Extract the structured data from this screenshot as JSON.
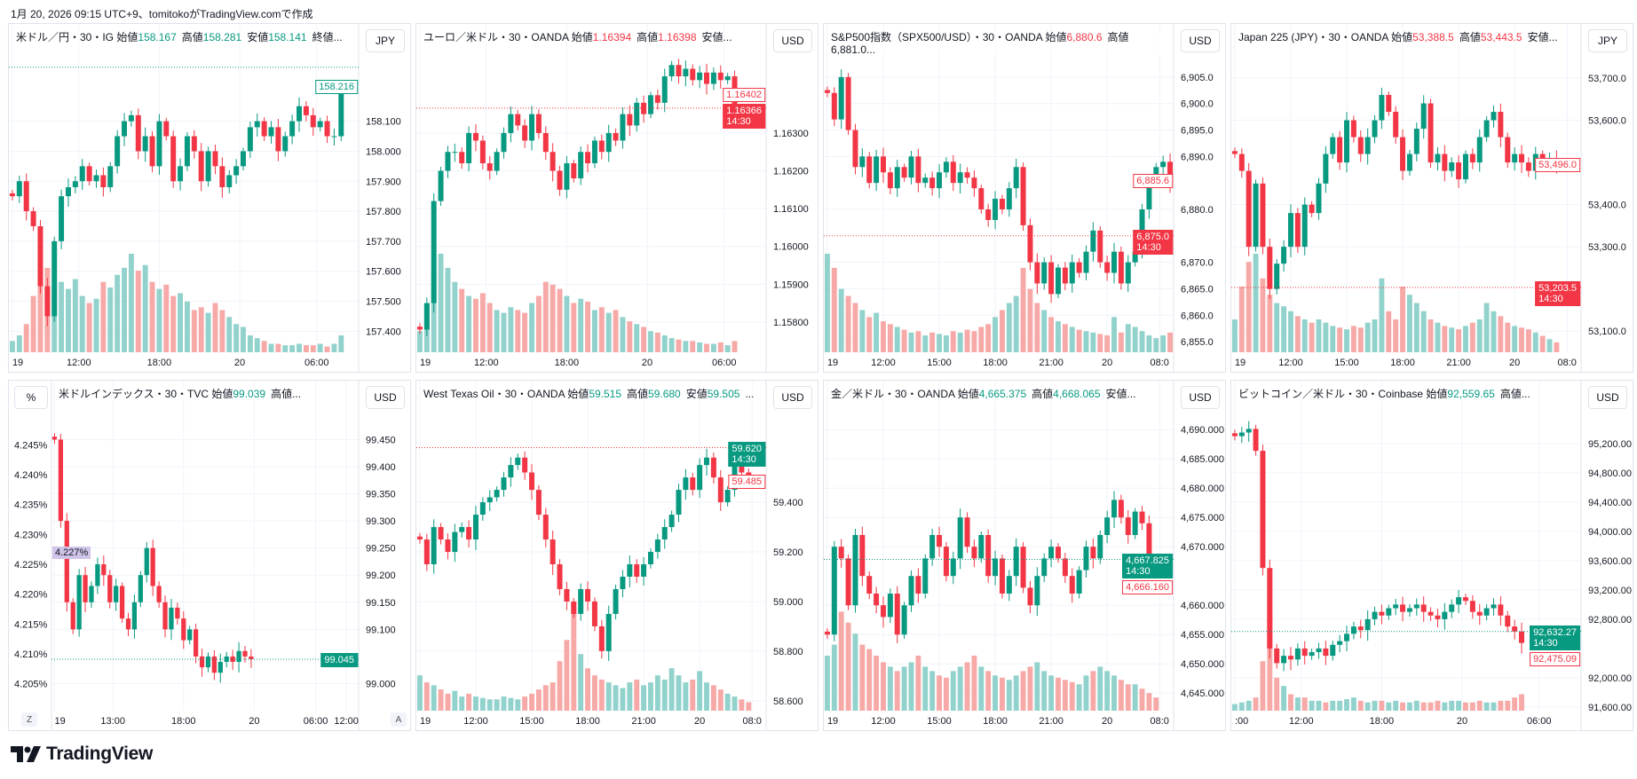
{
  "caption": "1月 20, 2026 09:15 UTC+9、tomitokoがTradingView.comで作成",
  "brand": "TradingView",
  "colors": {
    "up": "#089981",
    "down": "#f23645",
    "upVol": "#92d2cc",
    "downVol": "#f7a9a7",
    "grid": "#f0f3fa",
    "pct": "#d1c4e9"
  },
  "chart_data": [
    {
      "type": "candlestick",
      "legend": {
        "name": "米ドル／円・30・IG",
        "fields": [
          [
            "始値",
            "158.167"
          ],
          [
            "高値",
            "158.281"
          ],
          [
            "安値",
            "158.141"
          ]
        ],
        "tail": "終値..."
      },
      "legend_dir": "up",
      "currency": "JPY",
      "ylim": [
        157.33,
        158.3
      ],
      "yticks": [
        "158.100",
        "158.000",
        "157.900",
        "157.800",
        "157.700",
        "157.600",
        "157.500",
        "157.400"
      ],
      "xticks": [
        "19",
        "12:00",
        "18:00",
        "20",
        "06:00"
      ],
      "ref_line": {
        "value": 158.28,
        "dir": "up"
      },
      "labels": [
        {
          "value": 158.216,
          "text": "158.216",
          "style": "outline-up"
        }
      ],
      "close": [
        157.85,
        157.9,
        157.8,
        157.75,
        157.55,
        157.45,
        157.7,
        157.85,
        157.88,
        157.9,
        157.95,
        157.9,
        157.92,
        157.88,
        157.95,
        158.05,
        158.1,
        158.12,
        158.0,
        158.05,
        157.95,
        158.1,
        158.05,
        157.9,
        157.95,
        158.05,
        158.0,
        157.9,
        158.0,
        157.95,
        157.88,
        157.92,
        157.95,
        158.0,
        158.08,
        158.1,
        158.05,
        158.08,
        158.0,
        158.05,
        158.1,
        158.15,
        158.12,
        158.08,
        158.1,
        158.05,
        158.05,
        158.22
      ],
      "volume": [
        8,
        12,
        20,
        40,
        55,
        60,
        48,
        50,
        45,
        52,
        40,
        35,
        38,
        50,
        46,
        55,
        60,
        70,
        58,
        62,
        50,
        45,
        48,
        40,
        42,
        36,
        30,
        32,
        28,
        35,
        30,
        25,
        20,
        18,
        12,
        10,
        8,
        6,
        6,
        5,
        5,
        6,
        5,
        5,
        6,
        4,
        6,
        12
      ]
    },
    {
      "type": "candlestick",
      "legend": {
        "name": "ユーロ／米ドル・30・OANDA",
        "fields": [
          [
            "始値",
            "1.16394"
          ],
          [
            "高値",
            "1.16398"
          ]
        ],
        "tail": "安値..."
      },
      "legend_dir": "down",
      "currency": "USD",
      "ylim": [
        1.1572,
        1.1649
      ],
      "yticks": [
        "1.16300",
        "1.16200",
        "1.16100",
        "1.16000",
        "1.15900",
        "1.15800"
      ],
      "xticks": [
        "19",
        "12:00",
        "18:00",
        "20",
        "06:00"
      ],
      "ref_line": {
        "value": 1.16366,
        "dir": "down"
      },
      "labels": [
        {
          "value": 1.16402,
          "text": "1.16402",
          "style": "outline-down"
        },
        {
          "value": 1.16366,
          "text": "1.16366\n14:30",
          "style": "fill-down"
        }
      ],
      "close": [
        1.1578,
        1.1585,
        1.1612,
        1.162,
        1.1625,
        1.1625,
        1.1622,
        1.163,
        1.1628,
        1.1622,
        1.162,
        1.1625,
        1.163,
        1.1635,
        1.1632,
        1.1628,
        1.1635,
        1.163,
        1.1625,
        1.162,
        1.1615,
        1.1622,
        1.1618,
        1.1625,
        1.1622,
        1.1628,
        1.1625,
        1.163,
        1.1628,
        1.1635,
        1.1632,
        1.1638,
        1.1635,
        1.164,
        1.1638,
        1.1645,
        1.1648,
        1.1645,
        1.1647,
        1.1644,
        1.1646,
        1.1643,
        1.1646,
        1.1644,
        1.1645,
        1.1637
      ],
      "volume": [
        15,
        35,
        55,
        70,
        60,
        50,
        45,
        40,
        38,
        42,
        35,
        30,
        28,
        32,
        30,
        28,
        35,
        40,
        50,
        48,
        45,
        40,
        35,
        38,
        36,
        30,
        32,
        28,
        30,
        25,
        22,
        20,
        18,
        15,
        14,
        12,
        10,
        9,
        8,
        8,
        7,
        6,
        6,
        7,
        5,
        8
      ]
    },
    {
      "type": "candlestick",
      "legend": {
        "name": "S&P500指数（SPX500/USD）・30・OANDA",
        "fields": [
          [
            "始値",
            "6,880.6"
          ]
        ],
        "tail": "高値6,881.0..."
      },
      "legend_dir": "down",
      "currency": "USD",
      "ylim": [
        6853,
        6908
      ],
      "yticks": [
        "6,905.0",
        "6,900.0",
        "6,895.0",
        "6,890.0",
        "6,880.0",
        "6,870.0",
        "6,865.0",
        "6,860.0",
        "6,855.0"
      ],
      "xticks": [
        "19",
        "12:00",
        "15:00",
        "18:00",
        "21:00",
        "20",
        "08:0"
      ],
      "ref_line": {
        "value": 6875.0,
        "dir": "down"
      },
      "labels": [
        {
          "value": 6885.6,
          "text": "6,885.6",
          "style": "outline-down"
        },
        {
          "value": 6875.0,
          "text": "6,875.0\n14:30",
          "style": "fill-down"
        }
      ],
      "close": [
        6902,
        6897,
        6905,
        6895,
        6888,
        6890,
        6885,
        6890,
        6887,
        6884,
        6888,
        6886,
        6890,
        6885,
        6886,
        6884,
        6887,
        6889,
        6885,
        6887,
        6886,
        6884,
        6880,
        6878,
        6882,
        6880,
        6884,
        6888,
        6877,
        6870,
        6866,
        6870,
        6864,
        6869,
        6866,
        6870,
        6868,
        6872,
        6876,
        6870,
        6868,
        6872,
        6866,
        6870,
        6872,
        6880,
        6885,
        6888,
        6889,
        6885
      ],
      "volume": [
        70,
        60,
        45,
        40,
        35,
        30,
        25,
        28,
        22,
        20,
        18,
        16,
        14,
        15,
        12,
        14,
        13,
        12,
        15,
        14,
        16,
        15,
        18,
        20,
        25,
        30,
        35,
        40,
        60,
        45,
        35,
        30,
        25,
        22,
        20,
        18,
        16,
        15,
        14,
        13,
        12,
        25,
        14,
        20,
        18,
        15,
        12,
        10,
        12,
        14
      ]
    },
    {
      "type": "candlestick",
      "legend": {
        "name": "Japan 225 (JPY)・30・OANDA",
        "fields": [
          [
            "始値",
            "53,388.5"
          ],
          [
            "高値",
            "53,443.5"
          ]
        ],
        "tail": "安値..."
      },
      "legend_dir": "down",
      "currency": "JPY",
      "ylim": [
        53050,
        53740
      ],
      "yticks": [
        "53,700.0",
        "53,600.0",
        "53,400.0",
        "53,300.0",
        "53,100.0"
      ],
      "xticks": [
        "19",
        "12:00",
        "15:00",
        "18:00",
        "21:00",
        "20",
        "08:0"
      ],
      "ref_line": {
        "value": 53203.5,
        "dir": "down"
      },
      "labels": [
        {
          "value": 53496.0,
          "text": "53,496.0",
          "style": "outline-down"
        },
        {
          "value": 53203.5,
          "text": "53,203.5\n14:30",
          "style": "fill-down"
        }
      ],
      "close": [
        53520,
        53480,
        53300,
        53450,
        53300,
        53200,
        53260,
        53300,
        53380,
        53300,
        53400,
        53380,
        53450,
        53520,
        53560,
        53500,
        53600,
        53560,
        53520,
        53560,
        53600,
        53660,
        53620,
        53560,
        53480,
        53520,
        53580,
        53640,
        53500,
        53520,
        53480,
        53500,
        53460,
        53520,
        53500,
        53560,
        53600,
        53620,
        53560,
        53500,
        53520,
        53500,
        53480,
        53520,
        53500,
        53510,
        53496
      ],
      "volume": [
        20,
        40,
        55,
        60,
        45,
        35,
        30,
        28,
        25,
        22,
        20,
        18,
        20,
        18,
        16,
        15,
        14,
        16,
        15,
        18,
        20,
        45,
        25,
        20,
        40,
        35,
        30,
        25,
        20,
        18,
        16,
        15,
        14,
        16,
        18,
        20,
        30,
        25,
        22,
        18,
        16,
        15,
        14,
        12,
        10,
        8,
        6
      ]
    },
    {
      "type": "candlestick",
      "legend": {
        "name": "米ドルインデックス・30・TVC",
        "fields": [
          [
            "始値",
            "99.039"
          ]
        ],
        "tail": "高値..."
      },
      "legend_dir": "up",
      "currency": "USD",
      "left_axis": {
        "unit": "%",
        "ticks": [
          "4.245%",
          "4.240%",
          "4.235%",
          "4.230%",
          "4.225%",
          "4.220%",
          "4.215%",
          "4.210%",
          "4.205%"
        ],
        "ylim": [
          4.2005,
          4.2495
        ],
        "label": "4.227%",
        "label_value": 4.227
      },
      "ylim": [
        98.95,
        99.49
      ],
      "yticks": [
        "99.450",
        "99.400",
        "99.350",
        "99.300",
        "99.250",
        "99.200",
        "99.150",
        "99.100",
        "99.000"
      ],
      "xticks": [
        "19",
        "13:00",
        "18:00",
        "20",
        "06:00",
        "12:00"
      ],
      "ref_line": {
        "value": 99.045,
        "dir": "up"
      },
      "labels": [
        {
          "value": 99.045,
          "text": "99.045",
          "style": "fill-up"
        }
      ],
      "buttons": [
        "Z",
        "A"
      ],
      "close": [
        99.45,
        99.3,
        99.15,
        99.1,
        99.2,
        99.15,
        99.18,
        99.22,
        99.2,
        99.15,
        99.18,
        99.12,
        99.1,
        99.15,
        99.2,
        99.25,
        99.18,
        99.15,
        99.1,
        99.14,
        99.12,
        99.08,
        99.1,
        99.05,
        99.03,
        99.05,
        99.02,
        99.04,
        99.05,
        99.04,
        99.06,
        99.05,
        99.045
      ],
      "volume": []
    },
    {
      "type": "candlestick",
      "legend": {
        "name": "West Texas Oil・30・OANDA",
        "fields": [
          [
            "始値",
            "59.515"
          ],
          [
            "高値",
            "59.680"
          ],
          [
            "安値",
            "59.505"
          ]
        ],
        "tail": "..."
      },
      "legend_dir": "up",
      "currency": "USD",
      "ylim": [
        58.56,
        59.74
      ],
      "yticks": [
        "59.400",
        "59.200",
        "59.000",
        "58.800",
        "58.600"
      ],
      "xticks": [
        "19",
        "12:00",
        "15:00",
        "18:00",
        "21:00",
        "20",
        "08:0"
      ],
      "ref_line": {
        "value": 59.62,
        "dir": "down"
      },
      "labels": [
        {
          "value": 59.62,
          "text": "59.620\n14:30",
          "style": "fill-up"
        },
        {
          "value": 59.485,
          "text": "59.485",
          "style": "outline-down"
        }
      ],
      "close": [
        59.25,
        59.15,
        59.3,
        59.25,
        59.2,
        59.28,
        59.3,
        59.25,
        59.35,
        59.4,
        59.42,
        59.45,
        59.5,
        59.55,
        59.58,
        59.52,
        59.45,
        59.35,
        59.25,
        59.15,
        59.05,
        59.0,
        58.95,
        59.05,
        59.0,
        58.9,
        58.8,
        58.95,
        59.05,
        59.1,
        59.15,
        59.1,
        59.15,
        59.2,
        59.25,
        59.3,
        59.35,
        59.45,
        59.5,
        59.45,
        59.55,
        59.58,
        59.5,
        59.4,
        59.45,
        59.55,
        59.52,
        59.485
      ],
      "volume": [
        25,
        20,
        18,
        15,
        12,
        14,
        10,
        12,
        10,
        9,
        8,
        8,
        10,
        9,
        8,
        10,
        12,
        15,
        18,
        20,
        35,
        50,
        70,
        40,
        30,
        25,
        22,
        20,
        18,
        16,
        20,
        22,
        18,
        20,
        25,
        22,
        30,
        25,
        20,
        22,
        28,
        20,
        18,
        15,
        12,
        10,
        8,
        6
      ]
    },
    {
      "type": "candlestick",
      "legend": {
        "name": "金／米ドル・30・OANDA",
        "fields": [
          [
            "始値",
            "4,665.375"
          ],
          [
            "高値",
            "4,668.065"
          ]
        ],
        "tail": "安値..."
      },
      "legend_dir": "up",
      "currency": "USD",
      "ylim": [
        4642,
        4692
      ],
      "yticks": [
        "4,690.000",
        "4,685.000",
        "4,680.000",
        "4,675.000",
        "4,670.000",
        "4,660.000",
        "4,655.000",
        "4,650.000",
        "4,645.000"
      ],
      "xticks": [
        "19",
        "12:00",
        "15:00",
        "18:00",
        "21:00",
        "20",
        "08:0"
      ],
      "ref_line": {
        "value": 4667.825,
        "dir": "up"
      },
      "labels": [
        {
          "value": 4667.825,
          "text": "4,667.825\n14:30",
          "style": "fill-up"
        },
        {
          "value": 4666.16,
          "text": "4,666.160",
          "style": "outline-down"
        }
      ],
      "close": [
        4655,
        4670,
        4668,
        4660,
        4672,
        4665,
        4662,
        4660,
        4658,
        4662,
        4655,
        4660,
        4665,
        4662,
        4668,
        4672,
        4670,
        4665,
        4668,
        4675,
        4670,
        4668,
        4672,
        4665,
        4668,
        4662,
        4665,
        4670,
        4663,
        4660,
        4665,
        4668,
        4670,
        4668,
        4665,
        4662,
        4666,
        4670,
        4668,
        4672,
        4675,
        4678,
        4675,
        4672,
        4676,
        4674,
        4668,
        4666.16
      ],
      "volume": [
        25,
        30,
        45,
        40,
        35,
        30,
        28,
        25,
        22,
        20,
        18,
        20,
        22,
        25,
        20,
        18,
        16,
        15,
        18,
        20,
        22,
        25,
        20,
        18,
        16,
        15,
        14,
        16,
        18,
        20,
        22,
        18,
        16,
        15,
        14,
        13,
        12,
        16,
        18,
        20,
        18,
        16,
        14,
        12,
        12,
        10,
        8,
        6
      ]
    },
    {
      "type": "candlestick",
      "legend": {
        "name": "ビットコイン／米ドル・30・Coinbase",
        "fields": [
          [
            "始値",
            "92,559.65"
          ]
        ],
        "tail": "高値..."
      },
      "legend_dir": "up",
      "currency": "USD",
      "ylim": [
        91550,
        95550
      ],
      "yticks": [
        "95,200.00",
        "94,800.00",
        "94,400.00",
        "94,000.00",
        "93,600.00",
        "93,200.00",
        "92,800.00",
        "92,000.00",
        "91,600.00"
      ],
      "xticks": [
        ":00",
        "12:00",
        "18:00",
        "20",
        "06:00"
      ],
      "ref_line": {
        "value": 92632.27,
        "dir": "up"
      },
      "labels": [
        {
          "value": 92632.27,
          "text": "92,632.27\n14:30",
          "style": "fill-up"
        },
        {
          "value": 92475.09,
          "text": "92,475.09",
          "style": "outline-down"
        }
      ],
      "close": [
        95300,
        95350,
        95400,
        95100,
        93500,
        92400,
        92200,
        92300,
        92250,
        92400,
        92300,
        92350,
        92400,
        92300,
        92450,
        92500,
        92600,
        92700,
        92650,
        92800,
        92900,
        92850,
        92950,
        93000,
        92900,
        92950,
        93000,
        92900,
        92850,
        92800,
        92900,
        93000,
        93100,
        93050,
        92900,
        92850,
        92950,
        93000,
        92850,
        92700,
        92632,
        92475
      ],
      "volume": [
        4,
        5,
        6,
        8,
        30,
        60,
        20,
        15,
        10,
        8,
        8,
        6,
        6,
        5,
        6,
        6,
        7,
        8,
        6,
        5,
        6,
        6,
        5,
        6,
        5,
        5,
        6,
        5,
        5,
        6,
        5,
        6,
        6,
        5,
        5,
        6,
        5,
        5,
        6,
        6,
        8,
        10
      ]
    }
  ]
}
